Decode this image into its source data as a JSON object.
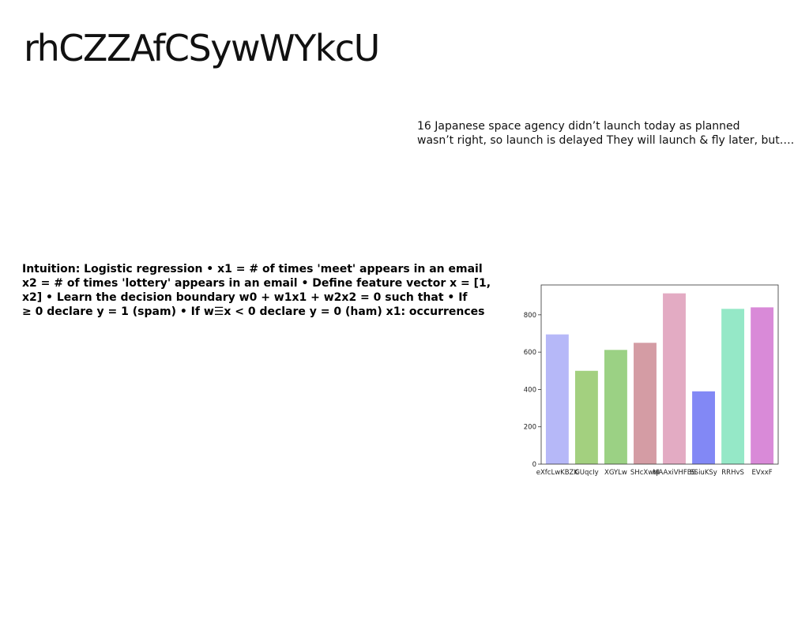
{
  "slide": {
    "title": "rhCZZAfCSywWYkcU",
    "quote_lines": [
      "16 Japanese space agency didn’t launch today as planned",
      "wasn’t right, so launch is delayed They will launch & fly later, but…."
    ],
    "body_lines": [
      "Intuition: Logistic regression • x1 = # of times 'meet' appears in an email",
      "x2 = # of times 'lottery' appears in an email • Define feature vector x = [1,",
      "x2] • Learn the decision boundary w0 + w1x1 + w2x2 = 0 such that • If",
      "≥ 0 declare y = 1 (spam) • If w☰x < 0 declare y = 0 (ham) x1: occurrences"
    ]
  },
  "chart_data": {
    "type": "bar",
    "categories": [
      "eXfcLwKBZK",
      "GUqcIy",
      "XGYLw",
      "SHcXwqI",
      "MAAxiVHFBS",
      "SSiuKSy",
      "RRHvS",
      "EVxxF"
    ],
    "values": [
      695,
      500,
      612,
      650,
      915,
      390,
      832,
      840
    ],
    "colors": [
      "#b6b8f8",
      "#a3d07f",
      "#9bd184",
      "#d49ca4",
      "#e3abc3",
      "#8288f5",
      "#95e8c7",
      "#d98ad8"
    ],
    "ylim": [
      0,
      960
    ],
    "yticks": [
      0,
      200,
      400,
      600,
      800
    ],
    "xlabel": "",
    "ylabel": "",
    "title": "",
    "grid": false
  }
}
